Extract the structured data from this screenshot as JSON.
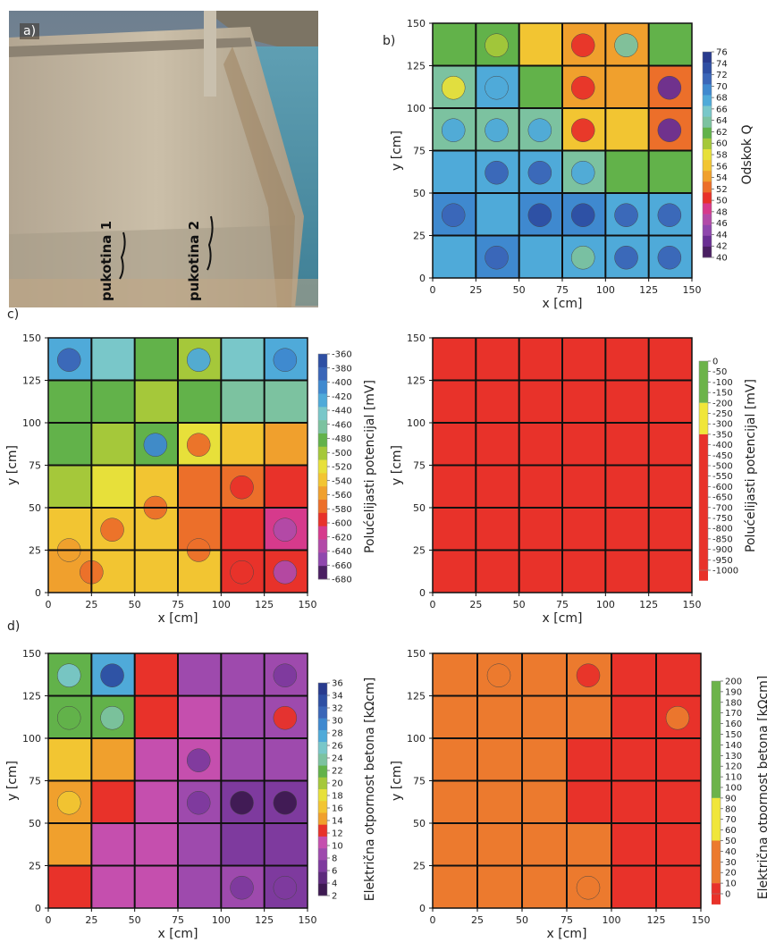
{
  "photo": {
    "label": "a)",
    "cracks": [
      "pukotina 1",
      "pukotina 2"
    ]
  },
  "panel_letters": {
    "b": "b)",
    "c": "c)",
    "d": "d)"
  },
  "chart_data": [
    {
      "id": "b",
      "type": "heatmap",
      "title": "",
      "xlabel": "x [cm]",
      "ylabel": "y [cm]",
      "xlim": [
        0,
        150
      ],
      "ylim": [
        0,
        150
      ],
      "xticks": [
        0,
        25,
        50,
        75,
        100,
        125,
        150
      ],
      "yticks": [
        0,
        25,
        50,
        75,
        100,
        125,
        150
      ],
      "colorbar_label": "Odskok Q",
      "colorbar_ticks": [
        "76",
        "74",
        "72",
        "70",
        "68",
        "66",
        "64",
        "62",
        "60",
        "58",
        "56",
        "54",
        "52",
        "50",
        "48",
        "46",
        "44",
        "42",
        "40"
      ],
      "colorbar_colors": [
        "#283b8e",
        "#2e4fa3",
        "#3a66b8",
        "#3f89cf",
        "#4faad9",
        "#79c7c9",
        "#7cc2a0",
        "#62b24a",
        "#a5c83a",
        "#e7e03a",
        "#f2c532",
        "#f0a02d",
        "#ec6f2a",
        "#e8322a",
        "#d63a8c",
        "#b24aa8",
        "#8f47ad",
        "#6a2f93",
        "#4a1f62"
      ],
      "grid": true,
      "grid_lines": [
        25,
        50,
        75,
        100,
        125
      ],
      "cells": [
        [
          "#62b24a",
          "#62b24a",
          "#f2c532",
          "#f0a02d",
          "#f0a02d",
          "#62b24a"
        ],
        [
          "#7cc2a0",
          "#4faad9",
          "#62b24a",
          "#f0a02d",
          "#f0a02d",
          "#ec6f2a"
        ],
        [
          "#7cc2a0",
          "#7cc2a0",
          "#7cc2a0",
          "#f2c532",
          "#f2c532",
          "#ec6f2a"
        ],
        [
          "#4faad9",
          "#4faad9",
          "#4faad9",
          "#7cc2a0",
          "#62b24a",
          "#62b24a"
        ],
        [
          "#3f89cf",
          "#4faad9",
          "#3f89cf",
          "#3f89cf",
          "#4faad9",
          "#4faad9"
        ],
        [
          "#4faad9",
          "#3f89cf",
          "#4faad9",
          "#4faad9",
          "#4faad9",
          "#4faad9"
        ]
      ],
      "spots": [
        {
          "x": 12,
          "y": 112,
          "v": "#e7e03a"
        },
        {
          "x": 37,
          "y": 112,
          "v": "#4faad9"
        },
        {
          "x": 37,
          "y": 137,
          "v": "#a5c83a"
        },
        {
          "x": 87,
          "y": 137,
          "v": "#e8322a"
        },
        {
          "x": 87,
          "y": 112,
          "v": "#e8322a"
        },
        {
          "x": 87,
          "y": 87,
          "v": "#e8322a"
        },
        {
          "x": 112,
          "y": 137,
          "v": "#7cc2a0"
        },
        {
          "x": 137,
          "y": 112,
          "v": "#6a2f93"
        },
        {
          "x": 137,
          "y": 87,
          "v": "#6a2f93"
        },
        {
          "x": 12,
          "y": 87,
          "v": "#4faad9"
        },
        {
          "x": 37,
          "y": 87,
          "v": "#4faad9"
        },
        {
          "x": 62,
          "y": 87,
          "v": "#4faad9"
        },
        {
          "x": 37,
          "y": 62,
          "v": "#3a66b8"
        },
        {
          "x": 62,
          "y": 62,
          "v": "#3a66b8"
        },
        {
          "x": 87,
          "y": 62,
          "v": "#4faad9"
        },
        {
          "x": 12,
          "y": 37,
          "v": "#3a66b8"
        },
        {
          "x": 62,
          "y": 37,
          "v": "#2e4fa3"
        },
        {
          "x": 87,
          "y": 37,
          "v": "#2e4fa3"
        },
        {
          "x": 112,
          "y": 37,
          "v": "#3a66b8"
        },
        {
          "x": 137,
          "y": 37,
          "v": "#3a66b8"
        },
        {
          "x": 37,
          "y": 12,
          "v": "#3a66b8"
        },
        {
          "x": 87,
          "y": 12,
          "v": "#7cc2a0"
        },
        {
          "x": 112,
          "y": 12,
          "v": "#3a66b8"
        },
        {
          "x": 137,
          "y": 12,
          "v": "#3a66b8"
        }
      ]
    },
    {
      "id": "c-left",
      "type": "heatmap",
      "title": "",
      "xlabel": "x [cm]",
      "ylabel": "y [cm]",
      "xlim": [
        0,
        150
      ],
      "ylim": [
        0,
        150
      ],
      "xticks": [
        0,
        25,
        50,
        75,
        100,
        125,
        150
      ],
      "yticks": [
        0,
        25,
        50,
        75,
        100,
        125,
        150
      ],
      "colorbar_label": "Polućelijasti potencijal [mV]",
      "colorbar_ticks": [
        "-360",
        "-380",
        "-400",
        "-420",
        "-440",
        "-460",
        "-480",
        "-500",
        "-520",
        "-540",
        "-560",
        "-580",
        "-600",
        "-620",
        "-640",
        "-660",
        "-680"
      ],
      "colorbar_colors": [
        "#2e4fa3",
        "#3a66b8",
        "#3f89cf",
        "#4faad9",
        "#79c7c9",
        "#7cc2a0",
        "#62b24a",
        "#a5c83a",
        "#e7e03a",
        "#f2c532",
        "#f0a02d",
        "#ec6f2a",
        "#e8322a",
        "#d63a8c",
        "#b24aa8",
        "#8f47ad",
        "#4a1f62"
      ],
      "grid": true,
      "grid_lines": [
        25,
        50,
        75,
        100,
        125
      ],
      "cells": [
        [
          "#4faad9",
          "#79c7c9",
          "#62b24a",
          "#a5c83a",
          "#79c7c9",
          "#4faad9"
        ],
        [
          "#62b24a",
          "#62b24a",
          "#a5c83a",
          "#62b24a",
          "#7cc2a0",
          "#7cc2a0"
        ],
        [
          "#62b24a",
          "#a5c83a",
          "#62b24a",
          "#e7e03a",
          "#f2c532",
          "#f0a02d"
        ],
        [
          "#a5c83a",
          "#e7e03a",
          "#f2c532",
          "#ec6f2a",
          "#ec6f2a",
          "#e8322a"
        ],
        [
          "#f2c532",
          "#f2c532",
          "#f2c532",
          "#ec6f2a",
          "#e8322a",
          "#d63a8c"
        ],
        [
          "#f0a02d",
          "#f2c532",
          "#f2c532",
          "#f2c532",
          "#e8322a",
          "#e8322a"
        ]
      ],
      "spots": [
        {
          "x": 62,
          "y": 87,
          "v": "#3f89cf"
        },
        {
          "x": 87,
          "y": 137,
          "v": "#4faad9"
        },
        {
          "x": 137,
          "y": 137,
          "v": "#3f89cf"
        },
        {
          "x": 12,
          "y": 137,
          "v": "#3a66b8"
        },
        {
          "x": 87,
          "y": 87,
          "v": "#ec6f2a"
        },
        {
          "x": 62,
          "y": 50,
          "v": "#ec6f2a"
        },
        {
          "x": 112,
          "y": 62,
          "v": "#e8322a"
        },
        {
          "x": 137,
          "y": 37,
          "v": "#b24aa8"
        },
        {
          "x": 112,
          "y": 12,
          "v": "#e8322a"
        },
        {
          "x": 137,
          "y": 12,
          "v": "#b24aa8"
        },
        {
          "x": 87,
          "y": 25,
          "v": "#ec6f2a"
        },
        {
          "x": 25,
          "y": 12,
          "v": "#ec6f2a"
        },
        {
          "x": 37,
          "y": 37,
          "v": "#ec6f2a"
        },
        {
          "x": 12,
          "y": 25,
          "v": "#f0a02d"
        }
      ]
    },
    {
      "id": "c-right",
      "type": "heatmap",
      "title": "",
      "xlabel": "x [cm]",
      "ylabel": "y [cm]",
      "xlim": [
        0,
        150
      ],
      "ylim": [
        0,
        150
      ],
      "xticks": [
        0,
        25,
        50,
        75,
        100,
        125,
        150
      ],
      "yticks": [
        0,
        25,
        50,
        75,
        100,
        125,
        150
      ],
      "colorbar_label": "Polućelijasti potencijal [mV]",
      "colorbar_ticks": [
        "0",
        "-50",
        "-100",
        "-150",
        "-200",
        "-250",
        "-300",
        "-350",
        "-400",
        "-450",
        "-500",
        "-550",
        "-600",
        "-650",
        "-700",
        "-750",
        "-800",
        "-850",
        "-900",
        "-950",
        "-1000"
      ],
      "colorbar_segments": [
        {
          "color": "#6cb34a",
          "count": 4
        },
        {
          "color": "#f0e63a",
          "count": 3
        },
        {
          "color": "#e8322a",
          "count": 14
        }
      ],
      "grid": true,
      "grid_lines": [
        25,
        50,
        75,
        100,
        125
      ],
      "uniform_color": "#e8322a"
    },
    {
      "id": "d-left",
      "type": "heatmap",
      "title": "",
      "xlabel": "x [cm]",
      "ylabel": "y [cm]",
      "xlim": [
        0,
        150
      ],
      "ylim": [
        0,
        150
      ],
      "xticks": [
        0,
        25,
        50,
        75,
        100,
        125,
        150
      ],
      "yticks": [
        0,
        25,
        50,
        75,
        100,
        125,
        150
      ],
      "colorbar_label": "Električna otpornost betona [kΩcm]",
      "colorbar_ticks": [
        "36",
        "34",
        "32",
        "30",
        "28",
        "26",
        "24",
        "22",
        "20",
        "18",
        "16",
        "14",
        "12",
        "10",
        "8",
        "6",
        "4",
        "2"
      ],
      "colorbar_colors": [
        "#283b8e",
        "#2e4fa3",
        "#3a66b8",
        "#3f89cf",
        "#4faad9",
        "#79c7c9",
        "#7cc2a0",
        "#62b24a",
        "#a5c83a",
        "#e7e03a",
        "#f2c532",
        "#f0a02d",
        "#e8322a",
        "#c54fae",
        "#9e4aad",
        "#7e3a9e",
        "#5d2a7c",
        "#3e1a52"
      ],
      "grid": true,
      "grid_lines": [
        25,
        50,
        75,
        100,
        125
      ],
      "cells": [
        [
          "#62b24a",
          "#4faad9",
          "#e8322a",
          "#9e4aad",
          "#9e4aad",
          "#9e4aad"
        ],
        [
          "#62b24a",
          "#62b24a",
          "#e8322a",
          "#c54fae",
          "#9e4aad",
          "#9e4aad"
        ],
        [
          "#f2c532",
          "#f0a02d",
          "#c54fae",
          "#c54fae",
          "#9e4aad",
          "#9e4aad"
        ],
        [
          "#f0a02d",
          "#e8322a",
          "#c54fae",
          "#9e4aad",
          "#7e3a9e",
          "#7e3a9e"
        ],
        [
          "#f0a02d",
          "#c54fae",
          "#c54fae",
          "#9e4aad",
          "#7e3a9e",
          "#7e3a9e"
        ],
        [
          "#e8322a",
          "#c54fae",
          "#c54fae",
          "#9e4aad",
          "#9e4aad",
          "#7e3a9e"
        ]
      ],
      "spots": [
        {
          "x": 37,
          "y": 137,
          "v": "#2e4fa3"
        },
        {
          "x": 12,
          "y": 137,
          "v": "#79c7c9"
        },
        {
          "x": 12,
          "y": 112,
          "v": "#62b24a"
        },
        {
          "x": 37,
          "y": 112,
          "v": "#7cc2a0"
        },
        {
          "x": 12,
          "y": 62,
          "v": "#f2c532"
        },
        {
          "x": 137,
          "y": 112,
          "v": "#e8322a"
        },
        {
          "x": 112,
          "y": 62,
          "v": "#3e1a52"
        },
        {
          "x": 137,
          "y": 62,
          "v": "#3e1a52"
        },
        {
          "x": 87,
          "y": 62,
          "v": "#7e3a9e"
        },
        {
          "x": 87,
          "y": 87,
          "v": "#7e3a9e"
        },
        {
          "x": 137,
          "y": 137,
          "v": "#7e3a9e"
        },
        {
          "x": 112,
          "y": 12,
          "v": "#7e3a9e"
        },
        {
          "x": 137,
          "y": 12,
          "v": "#7e3a9e"
        }
      ]
    },
    {
      "id": "d-right",
      "type": "heatmap",
      "title": "",
      "xlabel": "x [cm]",
      "ylabel": "y [cm]",
      "xlim": [
        0,
        150
      ],
      "ylim": [
        0,
        150
      ],
      "xticks": [
        0,
        25,
        50,
        75,
        100,
        125,
        150
      ],
      "yticks": [
        0,
        25,
        50,
        75,
        100,
        125,
        150
      ],
      "colorbar_label": "Električna otpornost betona [kΩcm]",
      "colorbar_ticks": [
        "200",
        "190",
        "180",
        "170",
        "160",
        "150",
        "140",
        "130",
        "120",
        "110",
        "100",
        "90",
        "80",
        "70",
        "60",
        "50",
        "40",
        "30",
        "20",
        "10",
        "0"
      ],
      "colorbar_segments": [
        {
          "color": "#6cb34a",
          "count": 11
        },
        {
          "color": "#f0e63a",
          "count": 4
        },
        {
          "color": "#ec7a2e",
          "count": 4
        },
        {
          "color": "#e8322a",
          "count": 2
        }
      ],
      "grid": true,
      "grid_lines": [
        25,
        50,
        75,
        100,
        125
      ],
      "cells": [
        [
          "#ec7a2e",
          "#ec7a2e",
          "#ec7a2e",
          "#ec7a2e",
          "#e8322a",
          "#e8322a"
        ],
        [
          "#ec7a2e",
          "#ec7a2e",
          "#ec7a2e",
          "#ec7a2e",
          "#e8322a",
          "#e8322a"
        ],
        [
          "#ec7a2e",
          "#ec7a2e",
          "#ec7a2e",
          "#e8322a",
          "#e8322a",
          "#e8322a"
        ],
        [
          "#ec7a2e",
          "#ec7a2e",
          "#ec7a2e",
          "#e8322a",
          "#e8322a",
          "#e8322a"
        ],
        [
          "#ec7a2e",
          "#ec7a2e",
          "#ec7a2e",
          "#ec7a2e",
          "#e8322a",
          "#e8322a"
        ],
        [
          "#ec7a2e",
          "#ec7a2e",
          "#ec7a2e",
          "#ec7a2e",
          "#e8322a",
          "#e8322a"
        ]
      ],
      "spots": [
        {
          "x": 87,
          "y": 137,
          "v": "#e8322a"
        },
        {
          "x": 137,
          "y": 112,
          "v": "#ec7a2e"
        },
        {
          "x": 37,
          "y": 137,
          "v": "#ec7a2e"
        },
        {
          "x": 87,
          "y": 12,
          "v": "#ec7a2e"
        }
      ]
    }
  ]
}
